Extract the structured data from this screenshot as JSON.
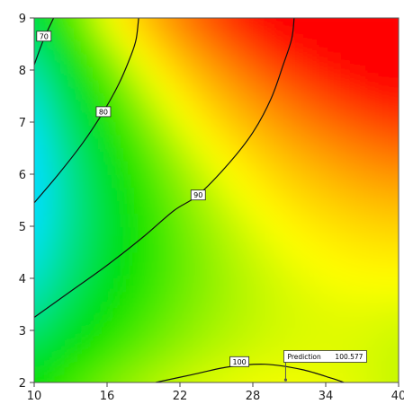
{
  "chart_data": {
    "type": "contour",
    "title": "",
    "xlabel": "",
    "ylabel": "",
    "xlim": [
      10,
      40
    ],
    "ylim": [
      2,
      9
    ],
    "x_ticks": [
      "10",
      "16",
      "22",
      "28",
      "34",
      "40"
    ],
    "y_ticks": [
      "2",
      "3",
      "4",
      "5",
      "6",
      "7",
      "8",
      "9"
    ],
    "colorscale": [
      "#1a40ff",
      "#00e0ff",
      "#00e000",
      "#ffff00",
      "#ff8000",
      "#ff0000"
    ],
    "contours": [
      {
        "level": 70,
        "label": "70",
        "label_at": [
          10.8,
          8.65
        ],
        "points": [
          [
            10,
            8.1
          ],
          [
            10.8,
            8.6
          ],
          [
            11.6,
            9.0
          ]
        ]
      },
      {
        "level": 80,
        "label": "80",
        "label_at": [
          15.7,
          7.2
        ],
        "points": [
          [
            10,
            5.45
          ],
          [
            12,
            6.0
          ],
          [
            14,
            6.6
          ],
          [
            15.7,
            7.2
          ],
          [
            17,
            7.75
          ],
          [
            18,
            8.3
          ],
          [
            18.4,
            8.6
          ],
          [
            18.6,
            9.0
          ]
        ]
      },
      {
        "level": 90,
        "label": "90",
        "label_at": [
          23.5,
          5.6
        ],
        "points": [
          [
            10,
            3.25
          ],
          [
            13,
            3.75
          ],
          [
            16,
            4.25
          ],
          [
            19,
            4.8
          ],
          [
            21.5,
            5.3
          ],
          [
            23.5,
            5.6
          ],
          [
            26,
            6.2
          ],
          [
            28,
            6.8
          ],
          [
            29.5,
            7.45
          ],
          [
            30.5,
            8.1
          ],
          [
            31.2,
            8.6
          ],
          [
            31.4,
            9.0
          ]
        ]
      },
      {
        "level": 100,
        "label": "100",
        "label_at": [
          26.9,
          2.4
        ],
        "points": [
          [
            20,
            2.0
          ],
          [
            23,
            2.15
          ],
          [
            26,
            2.3
          ],
          [
            29,
            2.35
          ],
          [
            32,
            2.25
          ],
          [
            34.5,
            2.08
          ],
          [
            35.5,
            2.0
          ]
        ]
      }
    ],
    "annotation": {
      "label": "Prediction",
      "value": "100.577",
      "point": [
        30.7,
        2.05
      ],
      "box_at": [
        30.7,
        2.5
      ]
    }
  }
}
